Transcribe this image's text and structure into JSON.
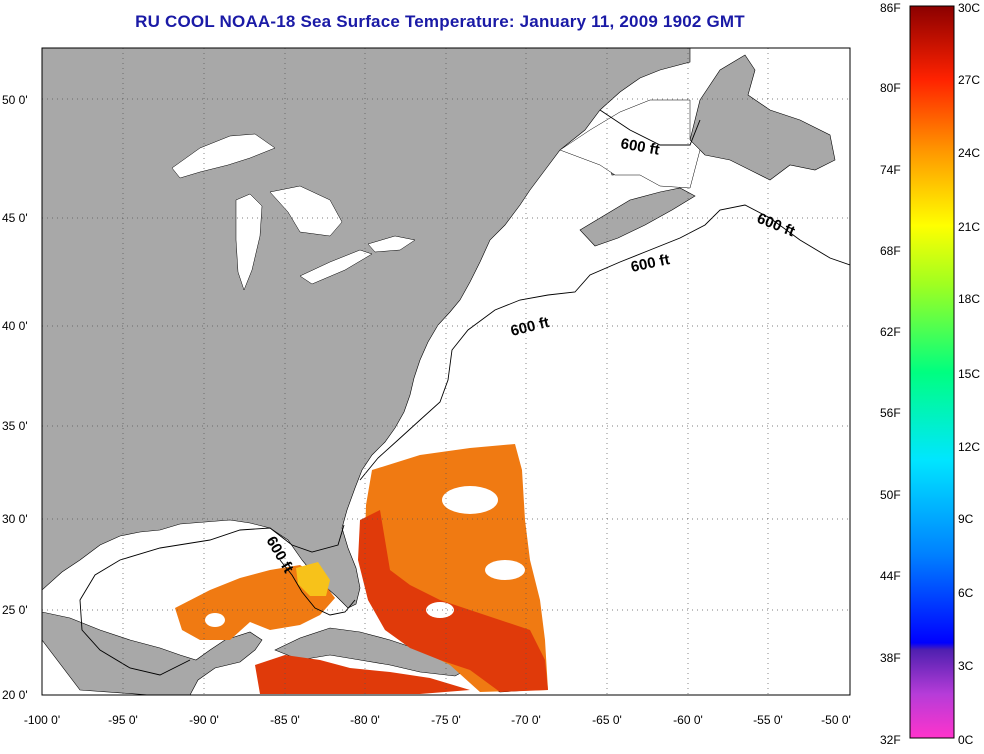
{
  "title": "RU COOL  NOAA-18  Sea Surface Temperature:  January 11, 2009 1902 GMT",
  "map": {
    "lon_range": [
      -100,
      -50
    ],
    "lat_range": [
      20,
      52.5
    ],
    "lon_ticks": [
      "-100 0'",
      "-95 0'",
      "-90 0'",
      "-85 0'",
      "-80 0'",
      "-75 0'",
      "-70 0'",
      "-65 0'",
      "-60 0'",
      "-55 0'",
      "-50 0'"
    ],
    "lat_ticks": [
      "50 0'",
      "45 0'",
      "40 0'",
      "35 0'",
      "30 0'",
      "25 0'",
      "20 0'"
    ],
    "contour_labels": [
      "600 ft",
      "600 ft",
      "600 ft",
      "600 ft",
      "600 ft"
    ],
    "colors": {
      "land": "#a8a8a8",
      "water_no_data": "#ffffff",
      "sst_warm": "#f07a12",
      "sst_hot": "#e03a0a"
    }
  },
  "colorbar": {
    "fahrenheit_labels": [
      "86F",
      "80F",
      "74F",
      "68F",
      "62F",
      "56F",
      "50F",
      "44F",
      "38F",
      "32F"
    ],
    "celsius_labels": [
      "30C",
      "27C",
      "24C",
      "21C",
      "18C",
      "15C",
      "12C",
      "9C",
      "6C",
      "3C",
      "0C"
    ],
    "range_f": [
      32,
      86
    ],
    "range_c": [
      0,
      30
    ]
  }
}
